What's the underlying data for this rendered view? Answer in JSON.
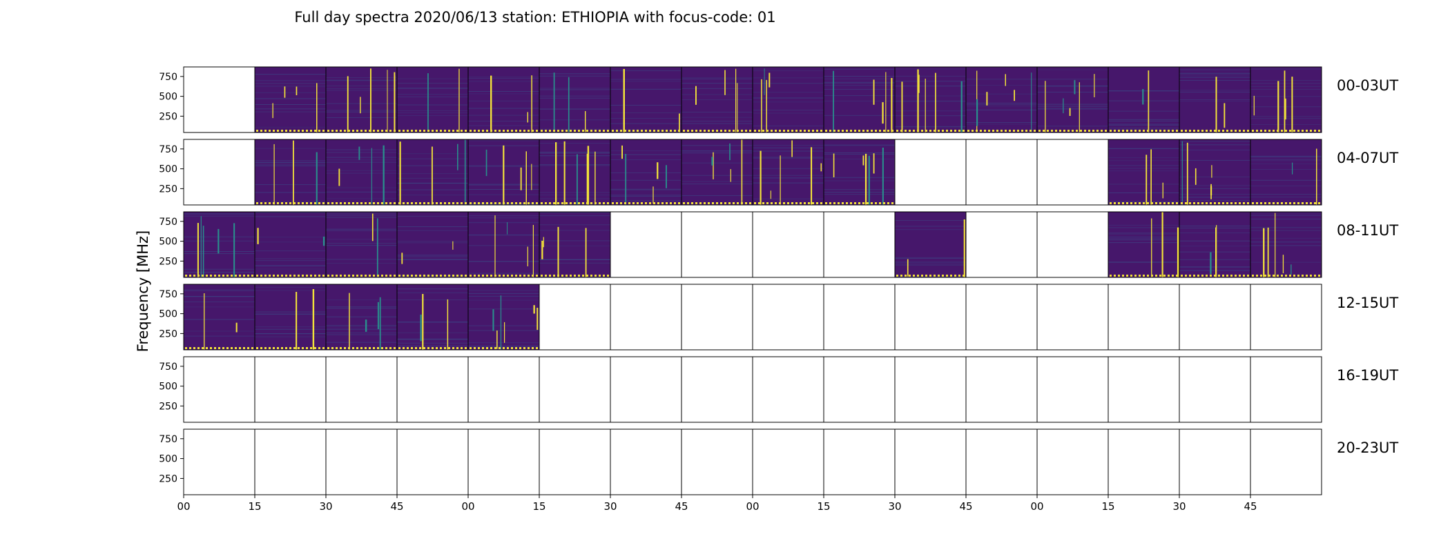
{
  "chart_data": {
    "type": "heatmap",
    "title": "Full day spectra 2020/06/13 station: ETHIOPIA with focus-code: 01",
    "ylabel": "Frequency [MHz]",
    "yticks": [
      "750",
      "500",
      "250"
    ],
    "xticks": [
      "00",
      "15",
      "30",
      "45",
      "00",
      "15",
      "30",
      "45",
      "00",
      "15",
      "30",
      "45",
      "00",
      "15",
      "30",
      "45"
    ],
    "ylim": [
      45,
      870
    ],
    "unit": "MHz",
    "colormap": {
      "background": "#46176b",
      "burst": "#f2e23a",
      "mid": "#2a8e8c",
      "empty": "#ffffff"
    },
    "panel_minutes": 15,
    "rows": [
      {
        "label": "00-03UT",
        "panels": [
          0,
          1,
          1,
          1,
          1,
          1,
          1,
          1,
          1,
          1,
          1,
          1,
          1,
          1,
          1,
          1
        ]
      },
      {
        "label": "04-07UT",
        "panels": [
          0,
          1,
          1,
          1,
          1,
          1,
          1,
          1,
          1,
          1,
          0,
          0,
          0,
          1,
          1,
          1
        ]
      },
      {
        "label": "08-11UT",
        "panels": [
          1,
          1,
          1,
          1,
          1,
          1,
          0,
          0,
          0,
          0,
          1,
          0,
          0,
          1,
          1,
          1
        ]
      },
      {
        "label": "12-15UT",
        "panels": [
          1,
          1,
          1,
          1,
          1,
          0,
          0,
          0,
          0,
          0,
          0,
          0,
          0,
          0,
          0,
          0
        ]
      },
      {
        "label": "16-19UT",
        "panels": [
          0,
          0,
          0,
          0,
          0,
          0,
          0,
          0,
          0,
          0,
          0,
          0,
          0,
          0,
          0,
          0
        ]
      },
      {
        "label": "20-23UT",
        "panels": [
          0,
          0,
          0,
          0,
          0,
          0,
          0,
          0,
          0,
          0,
          0,
          0,
          0,
          0,
          0,
          0
        ]
      }
    ]
  }
}
